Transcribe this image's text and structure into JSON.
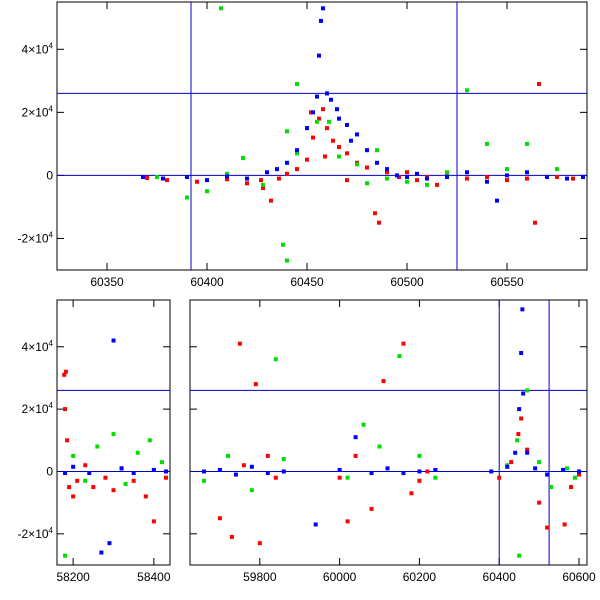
{
  "chart_data": [
    {
      "type": "scatter",
      "title": "",
      "xlabel": "",
      "ylabel": "",
      "xlim": [
        60325,
        60590
      ],
      "ylim": [
        -30000,
        55000
      ],
      "xticks": [
        60350,
        60400,
        60450,
        60500,
        60550
      ],
      "yticks": [
        -20000,
        0,
        20000,
        40000
      ],
      "ytick_labels": [
        "-2×10⁴",
        "0",
        "2×10⁴",
        "4×10⁴"
      ],
      "reference_lines": {
        "vertical": [
          60392,
          60525
        ],
        "horizontal": [
          0,
          26000
        ]
      },
      "series": [
        {
          "color": "#ff0000",
          "points": [
            [
              60370,
              -800
            ],
            [
              60380,
              -1500
            ],
            [
              60395,
              -2000
            ],
            [
              60410,
              -1200
            ],
            [
              60420,
              -2500
            ],
            [
              60428,
              -4000
            ],
            [
              60432,
              -8000
            ],
            [
              60436,
              -1000
            ],
            [
              60440,
              500
            ],
            [
              60445,
              2000
            ],
            [
              60450,
              5000
            ],
            [
              60453,
              12000
            ],
            [
              60456,
              18000
            ],
            [
              60458,
              21000
            ],
            [
              60460,
              15000
            ],
            [
              60463,
              11000
            ],
            [
              60466,
              9000
            ],
            [
              60470,
              7000
            ],
            [
              60475,
              4000
            ],
            [
              60480,
              2500
            ],
            [
              60484,
              -12000
            ],
            [
              60486,
              -15000
            ],
            [
              60490,
              1000
            ],
            [
              60496,
              -500
            ],
            [
              60500,
              1000
            ],
            [
              60505,
              -1500
            ],
            [
              60510,
              -500
            ],
            [
              60515,
              -3000
            ],
            [
              60520,
              500
            ],
            [
              60530,
              -1000
            ],
            [
              60540,
              -500
            ],
            [
              60550,
              -1500
            ],
            [
              60560,
              -1000
            ],
            [
              60564,
              -15000
            ],
            [
              60566,
              29000
            ],
            [
              60575,
              -500
            ],
            [
              60583,
              -1000
            ],
            [
              60427,
              -1500
            ],
            [
              60452,
              20000
            ],
            [
              60459,
              6000
            ],
            [
              60470,
              -1500
            ]
          ]
        },
        {
          "color": "#00dd00",
          "points": [
            [
              60375,
              -500
            ],
            [
              60390,
              -7000
            ],
            [
              60400,
              -5000
            ],
            [
              60410,
              500
            ],
            [
              60418,
              5500
            ],
            [
              60428,
              -3000
            ],
            [
              60438,
              -22000
            ],
            [
              60440,
              -27000
            ],
            [
              60445,
              7000
            ],
            [
              60450,
              15000
            ],
            [
              60455,
              17000
            ],
            [
              60461,
              17000
            ],
            [
              60466,
              6000
            ],
            [
              60475,
              3500
            ],
            [
              60480,
              -2500
            ],
            [
              60485,
              8000
            ],
            [
              60490,
              -1000
            ],
            [
              60500,
              -2000
            ],
            [
              60510,
              -3000
            ],
            [
              60520,
              1000
            ],
            [
              60530,
              27000
            ],
            [
              60540,
              10000
            ],
            [
              60550,
              2000
            ],
            [
              60560,
              10000
            ],
            [
              60575,
              2000
            ],
            [
              60445,
              29000
            ],
            [
              60407,
              53000
            ],
            [
              60440,
              14000
            ]
          ]
        },
        {
          "color": "#0000ff",
          "points": [
            [
              60368,
              -500
            ],
            [
              60378,
              -1000
            ],
            [
              60390,
              -500
            ],
            [
              60400,
              -1500
            ],
            [
              60410,
              -300
            ],
            [
              60420,
              -1000
            ],
            [
              60430,
              1000
            ],
            [
              60435,
              2000
            ],
            [
              60440,
              4000
            ],
            [
              60445,
              8000
            ],
            [
              60450,
              15000
            ],
            [
              60453,
              20000
            ],
            [
              60455,
              25000
            ],
            [
              60456,
              38000
            ],
            [
              60457,
              49000
            ],
            [
              60458,
              53000
            ],
            [
              60460,
              26000
            ],
            [
              60465,
              21000
            ],
            [
              60470,
              16000
            ],
            [
              60475,
              13000
            ],
            [
              60480,
              8000
            ],
            [
              60485,
              4000
            ],
            [
              60490,
              2000
            ],
            [
              60495,
              0
            ],
            [
              60500,
              -500
            ],
            [
              60505,
              500
            ],
            [
              60510,
              -1000
            ],
            [
              60520,
              -500
            ],
            [
              60530,
              1000
            ],
            [
              60540,
              -2000
            ],
            [
              60545,
              -8000
            ],
            [
              60550,
              0
            ],
            [
              60560,
              1000
            ],
            [
              60570,
              -500
            ],
            [
              60580,
              -1000
            ],
            [
              60588,
              -500
            ],
            [
              60462,
              24000
            ],
            [
              60466,
              18000
            ],
            [
              60472,
              11000
            ]
          ]
        }
      ]
    },
    {
      "type": "scatter",
      "title": "",
      "xlabel": "",
      "ylabel": "",
      "panels": [
        {
          "xlim": [
            58160,
            58440
          ],
          "xticks": [
            58200,
            58400
          ]
        },
        {
          "xlim": [
            59625,
            60620
          ],
          "xticks": [
            59800,
            60000,
            60200,
            60400,
            60600
          ]
        }
      ],
      "ylim": [
        -30000,
        55000
      ],
      "yticks": [
        -20000,
        0,
        20000,
        40000
      ],
      "ytick_labels": [
        "-2×10⁴",
        "0",
        "2×10⁴",
        "4×10⁴"
      ],
      "reference_lines": {
        "vertical": [
          60400,
          60525
        ],
        "horizontal": [
          0,
          26000
        ]
      },
      "series": [
        {
          "color": "#ff0000",
          "points": [
            [
              58178,
              31000
            ],
            [
              58182,
              32000
            ],
            [
              58180,
              20000
            ],
            [
              58185,
              10000
            ],
            [
              58190,
              -5000
            ],
            [
              58200,
              -8000
            ],
            [
              58210,
              -3000
            ],
            [
              58230,
              2000
            ],
            [
              58250,
              -5000
            ],
            [
              58280,
              -2000
            ],
            [
              58300,
              -6000
            ],
            [
              58320,
              1000
            ],
            [
              58350,
              -3000
            ],
            [
              58380,
              -8000
            ],
            [
              58400,
              -16000
            ],
            [
              58430,
              -2000
            ],
            [
              59700,
              -15000
            ],
            [
              59730,
              -21000
            ],
            [
              59750,
              41000
            ],
            [
              59760,
              2000
            ],
            [
              59790,
              28000
            ],
            [
              59800,
              -23000
            ],
            [
              59820,
              5000
            ],
            [
              59840,
              -2000
            ],
            [
              59860,
              0
            ],
            [
              60000,
              -2000
            ],
            [
              60020,
              -16000
            ],
            [
              60040,
              5000
            ],
            [
              60080,
              -12000
            ],
            [
              60110,
              29000
            ],
            [
              60160,
              41000
            ],
            [
              60180,
              -7000
            ],
            [
              60200,
              -3000
            ],
            [
              60220,
              0
            ],
            [
              60400,
              -2000
            ],
            [
              60430,
              3000
            ],
            [
              60448,
              12000
            ],
            [
              60455,
              17000
            ],
            [
              60470,
              7000
            ],
            [
              60500,
              -10000
            ],
            [
              60520,
              -18000
            ],
            [
              60564,
              -17000
            ],
            [
              60580,
              -5000
            ],
            [
              60600,
              -1000
            ]
          ]
        },
        {
          "color": "#00dd00",
          "points": [
            [
              58180,
              -27000
            ],
            [
              58200,
              5000
            ],
            [
              58230,
              -3000
            ],
            [
              58260,
              8000
            ],
            [
              58300,
              12000
            ],
            [
              58330,
              -4000
            ],
            [
              58360,
              6000
            ],
            [
              58390,
              10000
            ],
            [
              58420,
              3000
            ],
            [
              59660,
              -3000
            ],
            [
              59720,
              5000
            ],
            [
              59780,
              -6000
            ],
            [
              59840,
              36000
            ],
            [
              59860,
              4000
            ],
            [
              60020,
              -2000
            ],
            [
              60060,
              15000
            ],
            [
              60100,
              8000
            ],
            [
              60150,
              37000
            ],
            [
              60200,
              5000
            ],
            [
              60240,
              -2000
            ],
            [
              60420,
              2000
            ],
            [
              60445,
              10000
            ],
            [
              60450,
              -27000
            ],
            [
              60470,
              26000
            ],
            [
              60500,
              3000
            ],
            [
              60530,
              -5000
            ],
            [
              60570,
              1000
            ],
            [
              60590,
              -2000
            ]
          ]
        },
        {
          "color": "#0000ff",
          "points": [
            [
              58180,
              -500
            ],
            [
              58200,
              1500
            ],
            [
              58240,
              -500
            ],
            [
              58270,
              -26000
            ],
            [
              58290,
              -23000
            ],
            [
              58300,
              42000
            ],
            [
              58320,
              1000
            ],
            [
              58350,
              -500
            ],
            [
              58400,
              500
            ],
            [
              58430,
              0
            ],
            [
              59660,
              0
            ],
            [
              59700,
              500
            ],
            [
              59740,
              -1000
            ],
            [
              59780,
              1500
            ],
            [
              59820,
              -500
            ],
            [
              59860,
              0
            ],
            [
              59940,
              -17000
            ],
            [
              60000,
              500
            ],
            [
              60040,
              11000
            ],
            [
              60080,
              -500
            ],
            [
              60120,
              1000
            ],
            [
              60160,
              -500
            ],
            [
              60200,
              0
            ],
            [
              60240,
              500
            ],
            [
              60380,
              0
            ],
            [
              60420,
              1500
            ],
            [
              60440,
              6000
            ],
            [
              60450,
              20000
            ],
            [
              60455,
              38000
            ],
            [
              60458,
              52000
            ],
            [
              60460,
              25000
            ],
            [
              60470,
              6000
            ],
            [
              60490,
              1000
            ],
            [
              60520,
              -1000
            ],
            [
              60560,
              500
            ],
            [
              60600,
              0
            ]
          ]
        }
      ]
    }
  ]
}
